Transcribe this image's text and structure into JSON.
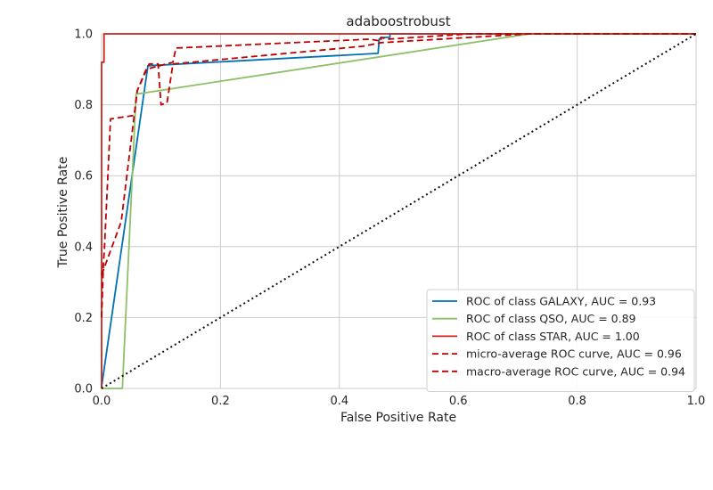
{
  "chart_data": {
    "type": "line",
    "title": "adaboostrobust",
    "xlabel": "False Positive Rate",
    "ylabel": "True Positive Rate",
    "xlim": [
      0,
      1
    ],
    "ylim": [
      0,
      1
    ],
    "xticks": [
      "0.0",
      "0.2",
      "0.4",
      "0.6",
      "0.8",
      "1.0"
    ],
    "yticks": [
      "0.0",
      "0.2",
      "0.4",
      "0.6",
      "0.8",
      "1.0"
    ],
    "grid": true,
    "legend_position": "lower-right",
    "series": [
      {
        "name": "ROC of class GALAXY, AUC = 0.93",
        "color": "#0072b2",
        "style": "solid",
        "points": [
          [
            0,
            0
          ],
          [
            0,
            0.005
          ],
          [
            0.078,
            0.91
          ],
          [
            0.465,
            0.945
          ],
          [
            0.467,
            0.985
          ],
          [
            0.47,
            0.99
          ],
          [
            0.485,
            0.99
          ],
          [
            0.485,
            1.0
          ],
          [
            1,
            1
          ]
        ]
      },
      {
        "name": "ROC of class QSO, AUC = 0.89",
        "color": "#8cc168",
        "style": "solid",
        "points": [
          [
            0,
            0
          ],
          [
            0.035,
            0
          ],
          [
            0.058,
            0.83
          ],
          [
            0.72,
            1.0
          ],
          [
            1,
            1
          ]
        ]
      },
      {
        "name": "ROC of class STAR, AUC = 1.00",
        "color": "#c4261d",
        "style": "solid",
        "points": [
          [
            0,
            0
          ],
          [
            0,
            0.92
          ],
          [
            0.004,
            0.92
          ],
          [
            0.004,
            1.0
          ],
          [
            0.006,
            1.0
          ],
          [
            1,
            1
          ]
        ]
      },
      {
        "name": "micro-average ROC curve, AUC = 0.96",
        "color": "#c00000",
        "style": "dashed",
        "points": [
          [
            0,
            0.2
          ],
          [
            0.003,
            0.35
          ],
          [
            0.005,
            0.4
          ],
          [
            0.015,
            0.76
          ],
          [
            0.055,
            0.77
          ],
          [
            0.06,
            0.84
          ],
          [
            0.075,
            0.9
          ],
          [
            0.12,
            0.92
          ],
          [
            0.125,
            0.96
          ],
          [
            0.45,
            0.985
          ],
          [
            0.47,
            0.98
          ],
          [
            0.47,
            0.99
          ],
          [
            0.48,
            0.985
          ],
          [
            0.62,
            1.0
          ],
          [
            1,
            1
          ]
        ]
      },
      {
        "name": "macro-average ROC curve, AUC = 0.94",
        "color": "#c00000",
        "style": "dashed",
        "points": [
          [
            0,
            0.32
          ],
          [
            0.033,
            0.47
          ],
          [
            0.06,
            0.84
          ],
          [
            0.08,
            0.915
          ],
          [
            0.095,
            0.915
          ],
          [
            0.1,
            0.8
          ],
          [
            0.11,
            0.805
          ],
          [
            0.12,
            0.915
          ],
          [
            0.44,
            0.965
          ],
          [
            0.47,
            0.975
          ],
          [
            0.72,
            1.0
          ],
          [
            1,
            1
          ]
        ]
      },
      {
        "name": "",
        "color": "#111111",
        "style": "dotted",
        "points": [
          [
            0,
            0
          ],
          [
            1,
            1
          ]
        ]
      }
    ]
  }
}
